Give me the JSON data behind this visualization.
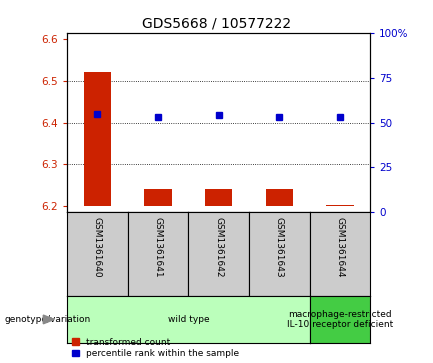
{
  "title": "GDS5668 / 10577222",
  "samples": [
    "GSM1361640",
    "GSM1361641",
    "GSM1361642",
    "GSM1361643",
    "GSM1361644"
  ],
  "red_values": [
    6.52,
    6.24,
    6.24,
    6.24,
    6.202
  ],
  "red_base": 6.2,
  "blue_values": [
    55,
    53,
    54,
    53,
    53
  ],
  "ylim_left": [
    6.185,
    6.615
  ],
  "ylim_right": [
    0,
    100
  ],
  "yticks_left": [
    6.2,
    6.3,
    6.4,
    6.5,
    6.6
  ],
  "yticks_right": [
    0,
    25,
    50,
    75,
    100
  ],
  "ytick_labels_right": [
    "0",
    "25",
    "50",
    "75",
    "100%"
  ],
  "genotype_groups": [
    {
      "label": "wild type",
      "indices": [
        0,
        1,
        2,
        3
      ],
      "color": "#bbffbb"
    },
    {
      "label": "macrophage-restricted\nIL-10 receptor deficient",
      "indices": [
        4
      ],
      "color": "#44cc44"
    }
  ],
  "bar_color": "#cc2200",
  "dot_color": "#0000cc",
  "bg_color": "#ffffff",
  "sample_box_color": "#cccccc",
  "legend_items": [
    {
      "color": "#cc2200",
      "label": "transformed count"
    },
    {
      "color": "#0000cc",
      "label": "percentile rank within the sample"
    }
  ],
  "title_fontsize": 10,
  "tick_fontsize": 7.5,
  "sample_fontsize": 6.5,
  "geno_fontsize": 6.5
}
